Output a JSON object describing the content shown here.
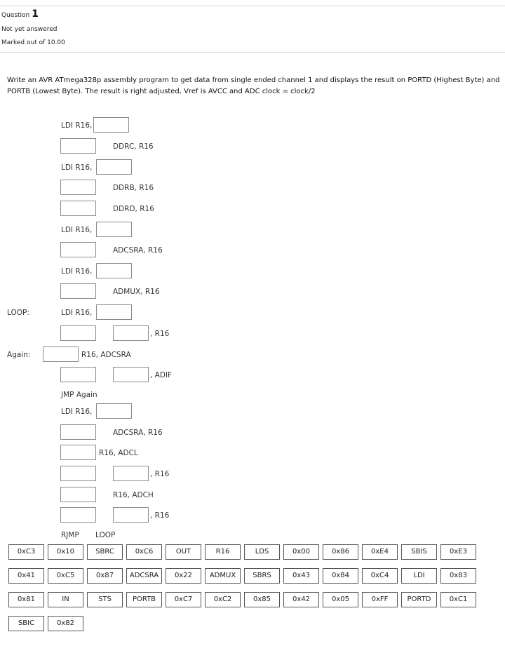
{
  "question": {
    "label": "Question",
    "number": "1",
    "status": "Not yet answered",
    "marks": "Marked out of 10.00"
  },
  "prompt": "Write an AVR ATmega328p assembly program to get data from single ended channel 1 and displays the result on PORTD (Highest Byte) and PORTB (Lowest Byte). The result is right adjusted, Vref is AVCC and ADC clock = clock/2",
  "labels": {
    "loop": "LOOP:",
    "again": "Again:"
  },
  "code": {
    "ldi_r16": "LDI  R16,",
    "ddrc": "DDRC, R16",
    "ddrb": "DDRB, R16",
    "ddrd": "DDRD, R16",
    "adcsra_r16": "ADCSRA, R16",
    "admux_r16": "ADMUX, R16",
    "comma_r16": ", R16",
    "r16_adcsra": "R16, ADCSRA",
    "comma_adif": ", ADIF",
    "jmp_again": "JMP Again",
    "r16_adcl": "R16, ADCL",
    "r16_adch": "R16, ADCH",
    "rjmp": "RJMP",
    "rjmp_target": "LOOP"
  },
  "options": [
    "0xC3",
    "0x10",
    "SBRC",
    "0xC6",
    "OUT",
    "R16",
    "LDS",
    "0x00",
    "0x86",
    "0xE4",
    "SBIS",
    "0xE3",
    "0x41",
    "0xC5",
    "0x87",
    "ADCSRA",
    "0x22",
    "ADMUX",
    "SBRS",
    "0x43",
    "0x84",
    "0xC4",
    "LDI",
    "0x83",
    "0x81",
    "IN",
    "STS",
    "PORTB",
    "0xC7",
    "0xC2",
    "0x85",
    "0x42",
    "0x05",
    "0xFF",
    "PORTD",
    "0xC1",
    "SBIC",
    "0x82"
  ]
}
